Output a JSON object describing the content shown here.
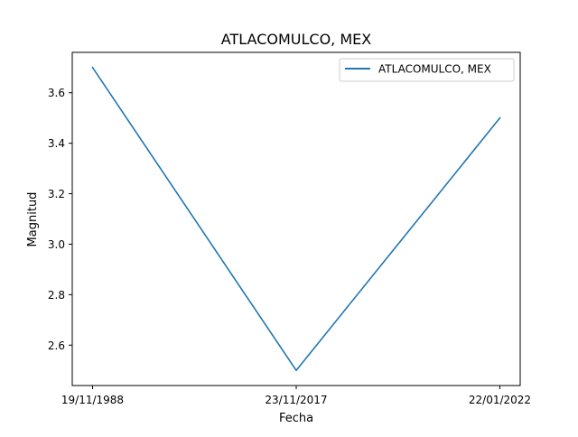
{
  "chart_data": {
    "type": "line",
    "title": "ATLACOMULCO, MEX",
    "xlabel": "Fecha",
    "ylabel": "Magnitud",
    "categories": [
      "19/11/1988",
      "23/11/2017",
      "22/01/2022"
    ],
    "series": [
      {
        "name": "ATLACOMULCO, MEX",
        "color": "#1f77b4",
        "values": [
          3.7,
          2.5,
          3.5
        ]
      }
    ],
    "ylim": [
      2.44,
      3.76
    ],
    "yticks": [
      2.6,
      2.8,
      3.0,
      3.2,
      3.4,
      3.6
    ],
    "ytick_labels": [
      "2.6",
      "2.8",
      "3.0",
      "3.2",
      "3.4",
      "3.6"
    ],
    "grid": false,
    "legend_position": "top-right"
  }
}
